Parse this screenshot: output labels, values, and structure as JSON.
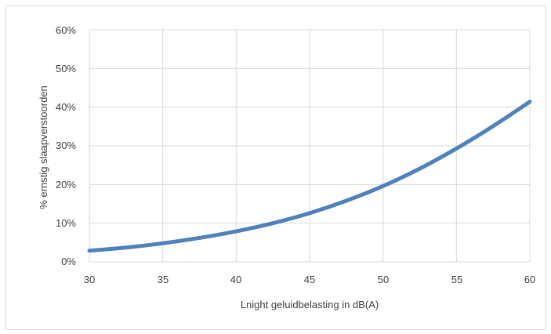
{
  "chart_data": {
    "type": "line",
    "xlabel": "Lnight geluidbelasting in dB(A)",
    "ylabel": "% ernstig slaapverstoorden",
    "xlim": [
      30,
      60
    ],
    "ylim": [
      0,
      60
    ],
    "x_ticks": [
      "30",
      "35",
      "40",
      "45",
      "50",
      "55",
      "60"
    ],
    "y_ticks": [
      "0%",
      "10%",
      "20%",
      "30%",
      "40%",
      "50%",
      "60%"
    ],
    "grid": true,
    "legend": "none",
    "series": [
      {
        "color": "#4f81bd",
        "x": [
          30,
          32.5,
          35,
          37.5,
          40,
          42.5,
          45,
          47.5,
          50,
          52.5,
          55,
          57.5,
          60
        ],
        "y": [
          2.9,
          3.7,
          4.8,
          6.2,
          7.9,
          10.0,
          12.6,
          15.8,
          19.6,
          24.1,
          29.3,
          35.1,
          41.4
        ]
      }
    ]
  }
}
